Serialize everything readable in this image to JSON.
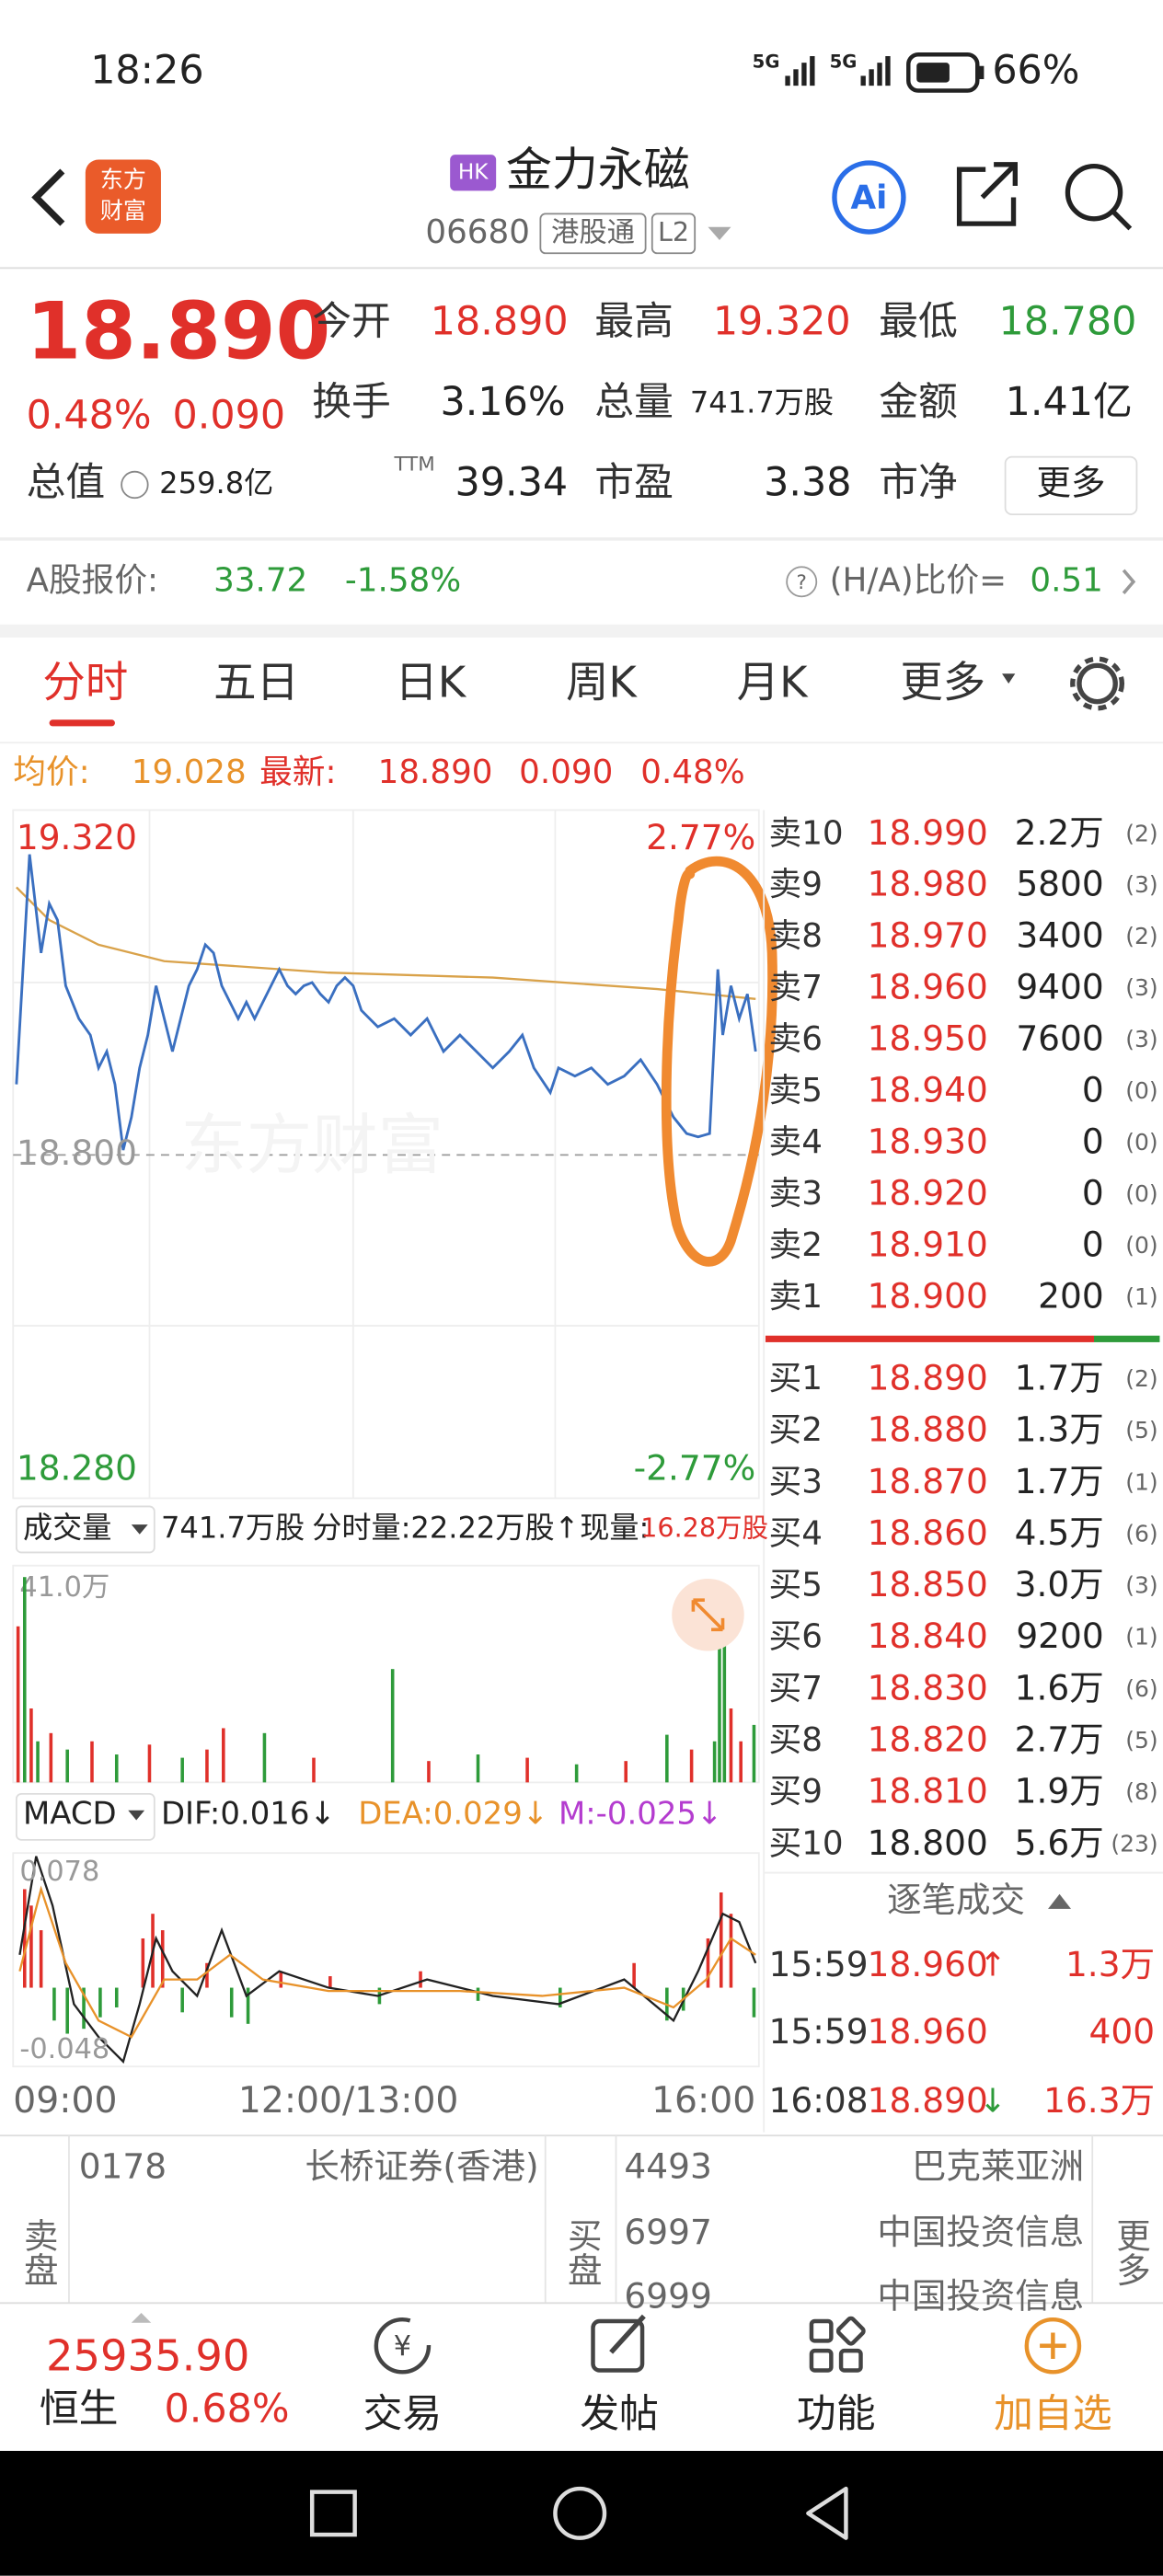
{
  "status_bar": {
    "time": "18:26",
    "network_1": "5G",
    "network_2": "5G",
    "battery": "66%"
  },
  "header": {
    "logo_line_1": "东方",
    "logo_line_2": "财富",
    "market": "HK",
    "title": "金力永磁",
    "code": "06680",
    "channel": "港股通",
    "level": "L2"
  },
  "quote": {
    "price": "18.890",
    "change_percent": "0.48%",
    "change": "0.090",
    "fields": [
      {
        "label": "今开",
        "value": "18.890"
      },
      {
        "label": "最高",
        "value": "19.320"
      },
      {
        "label": "最低",
        "value": "18.780"
      },
      {
        "label": "换手",
        "value": "3.16%"
      },
      {
        "label": "总量",
        "value": "741.7万股"
      },
      {
        "label": "金额",
        "value": "1.41亿"
      },
      {
        "label": "总值",
        "value": "259.8亿"
      },
      {
        "label": "市盈",
        "value": "39.34"
      },
      {
        "label": "市净",
        "value": "3.38"
      }
    ],
    "pe_superscript": "TTM",
    "more_button": "更多"
  },
  "a_share": {
    "label": "A股报价:",
    "price": "33.72",
    "change_percent": "-1.58%",
    "ratio_label": "(H/A)比价=",
    "ratio": "0.51"
  },
  "tabs": [
    "分时",
    "五日",
    "日K",
    "周K",
    "月K",
    "更多"
  ],
  "chart_info": {
    "avg_label": "均价:",
    "avg": "19.028",
    "latest_label": "最新:",
    "latest": "18.890",
    "change": "0.090",
    "change_percent": "0.48%"
  },
  "price_axis": {
    "high": "19.320",
    "high_percent": "2.77%",
    "mid": "18.800",
    "low": "18.280",
    "low_percent": "-2.77%"
  },
  "order_book": {
    "sell": [
      {
        "label": "卖10",
        "price": "18.990",
        "volume": "2.2万",
        "count": "(2)"
      },
      {
        "label": "卖9",
        "price": "18.980",
        "volume": "5800",
        "count": "(3)"
      },
      {
        "label": "卖8",
        "price": "18.970",
        "volume": "3400",
        "count": "(2)"
      },
      {
        "label": "卖7",
        "price": "18.960",
        "volume": "9400",
        "count": "(3)"
      },
      {
        "label": "卖6",
        "price": "18.950",
        "volume": "7600",
        "count": "(3)"
      },
      {
        "label": "卖5",
        "price": "18.940",
        "volume": "0",
        "count": "(0)"
      },
      {
        "label": "卖4",
        "price": "18.930",
        "volume": "0",
        "count": "(0)"
      },
      {
        "label": "卖3",
        "price": "18.920",
        "volume": "0",
        "count": "(0)"
      },
      {
        "label": "卖2",
        "price": "18.910",
        "volume": "0",
        "count": "(0)"
      },
      {
        "label": "卖1",
        "price": "18.900",
        "volume": "200",
        "count": "(1)"
      }
    ],
    "buy": [
      {
        "label": "买1",
        "price": "18.890",
        "volume": "1.7万",
        "count": "(2)"
      },
      {
        "label": "买2",
        "price": "18.880",
        "volume": "1.3万",
        "count": "(5)"
      },
      {
        "label": "买3",
        "price": "18.870",
        "volume": "1.7万",
        "count": "(1)"
      },
      {
        "label": "买4",
        "price": "18.860",
        "volume": "4.5万",
        "count": "(6)"
      },
      {
        "label": "买5",
        "price": "18.850",
        "volume": "3.0万",
        "count": "(3)"
      },
      {
        "label": "买6",
        "price": "18.840",
        "volume": "9200",
        "count": "(1)"
      },
      {
        "label": "买7",
        "price": "18.830",
        "volume": "1.6万",
        "count": "(6)"
      },
      {
        "label": "买8",
        "price": "18.820",
        "volume": "2.7万",
        "count": "(5)"
      },
      {
        "label": "买9",
        "price": "18.810",
        "volume": "1.9万",
        "count": "(8)"
      },
      {
        "label": "买10",
        "price": "18.800",
        "volume": "5.6万",
        "count": "(23)"
      }
    ]
  },
  "volume": {
    "label": "成交量",
    "total": "741.7万股",
    "per_minute": "分时量:22.22万股↑",
    "current_label": "现量:",
    "current": "16.28万股",
    "axis_max": "41.0万"
  },
  "macd": {
    "label": "MACD",
    "dif": "DIF:0.016↓",
    "dea": "DEA:0.029↓",
    "m": "M:-0.025↓",
    "axis_max": "0.078",
    "axis_min": "-0.048"
  },
  "time_axis": [
    "09:00",
    "12:00/13:00",
    "16:00"
  ],
  "trades": {
    "title": "逐笔成交",
    "rows": [
      {
        "time": "15:59",
        "price": "18.960",
        "arrow": "↑",
        "volume": "1.3万"
      },
      {
        "time": "15:59",
        "price": "18.960",
        "volume": "400"
      },
      {
        "time": "16:08",
        "price": "18.890",
        "arrow": "↓",
        "volume": "16.3万"
      }
    ]
  },
  "brokers": {
    "sell_label": "卖盘",
    "buy_label": "买盘",
    "sell": [
      {
        "id": "0178",
        "name": "长桥证券(香港)"
      }
    ],
    "buy": [
      {
        "id": "4493",
        "name": "巴克莱亚洲"
      },
      {
        "id": "6997",
        "name": "中国投资信息"
      },
      {
        "id": "6999",
        "name": "中国投资信息"
      }
    ],
    "more": "更多"
  },
  "bottom_bar": {
    "index_value": "25935.90",
    "index_name": "恒生",
    "index_change": "0.68%",
    "items": [
      "交易",
      "发帖",
      "功能",
      "加自选"
    ]
  }
}
